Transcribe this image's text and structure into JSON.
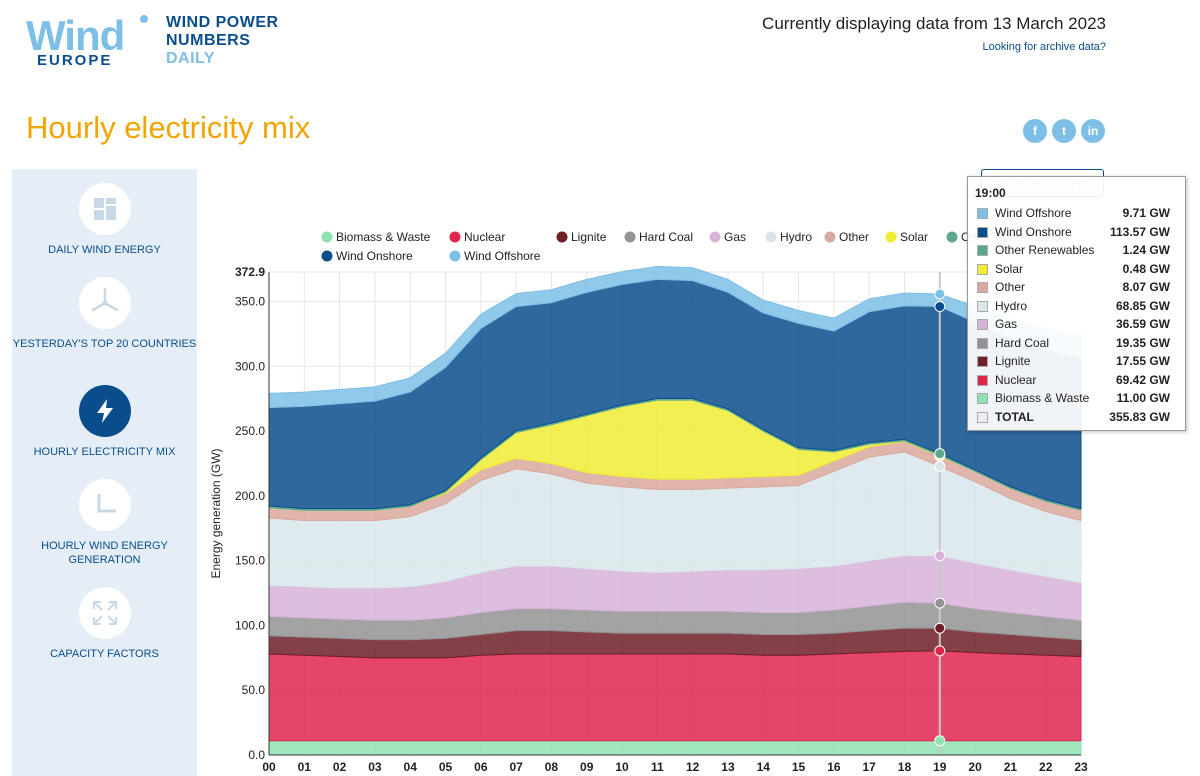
{
  "header": {
    "logo_main": "Wind",
    "logo_sub": "EUROPE",
    "logo_tag1": "WIND POWER",
    "logo_tag2": "NUMBERS",
    "logo_tag3": "DAILY",
    "current_text": "Currently displaying data from 13 March 2023",
    "archive_link": "Looking for archive data?"
  },
  "page_title": "Hourly electricity mix",
  "social": {
    "facebook": "f",
    "twitter": "t",
    "linkedin": "in"
  },
  "country_select": {
    "placeholder": "Select your country"
  },
  "sidebar": {
    "items": [
      {
        "label": "DAILY WIND ENERGY",
        "icon": "dashboard-icon"
      },
      {
        "label": "YESTERDAY'S TOP 20 COUNTRIES",
        "icon": "turbine-icon"
      },
      {
        "label": "HOURLY ELECTRICITY MIX",
        "icon": "lightning-icon",
        "active": true
      },
      {
        "label": "HOURLY WIND ENERGY GENERATION",
        "icon": "clock-icon"
      },
      {
        "label": "CAPACITY FACTORS",
        "icon": "expand-icon"
      }
    ]
  },
  "colors": {
    "accent": "#f0a500",
    "brand": "#0a4d8c",
    "brand_light": "#7dbfe6"
  },
  "tooltip": {
    "time": "19:00",
    "rows": [
      {
        "name": "Wind Offshore",
        "value": "9.71 GW",
        "color": "#7dbfe6"
      },
      {
        "name": "Wind Onshore",
        "value": "113.57 GW",
        "color": "#0a4d8c"
      },
      {
        "name": "Other Renewables",
        "value": "1.24 GW",
        "color": "#5aa890"
      },
      {
        "name": "Solar",
        "value": "0.48 GW",
        "color": "#f0ec34"
      },
      {
        "name": "Other",
        "value": "8.07 GW",
        "color": "#d9a89e"
      },
      {
        "name": "Hydro",
        "value": "68.85 GW",
        "color": "#d8e6ea"
      },
      {
        "name": "Gas",
        "value": "36.59 GW",
        "color": "#d7b3d8"
      },
      {
        "name": "Hard Coal",
        "value": "19.35 GW",
        "color": "#939393"
      },
      {
        "name": "Lignite",
        "value": "17.55 GW",
        "color": "#6e1f27"
      },
      {
        "name": "Nuclear",
        "value": "69.42 GW",
        "color": "#e0254d"
      },
      {
        "name": "Biomass & Waste",
        "value": "11.00 GW",
        "color": "#8ee2b0"
      },
      {
        "name": "TOTAL",
        "value": "355.83 GW",
        "color": "#eeeeee"
      }
    ]
  },
  "chart_data": {
    "type": "area",
    "stacked": true,
    "ylabel": "Energy generation (GW)",
    "ylim": [
      0,
      372.9
    ],
    "yticks": [
      "0.0",
      "50.0",
      "100.0",
      "150.0",
      "200.0",
      "250.0",
      "300.0",
      "350.0",
      "372.9"
    ],
    "x": [
      "00",
      "01",
      "02",
      "03",
      "04",
      "05",
      "06",
      "07",
      "08",
      "09",
      "10",
      "11",
      "12",
      "13",
      "14",
      "15",
      "16",
      "17",
      "18",
      "19",
      "20",
      "21",
      "22",
      "23"
    ],
    "grid": true,
    "legend_position": "top",
    "highlight_index": 19,
    "series": [
      {
        "name": "Biomass & Waste",
        "color": "#8ee2b0",
        "values": [
          11,
          11,
          11,
          11,
          11,
          11,
          11,
          11,
          11,
          11,
          11,
          11,
          11,
          11,
          11,
          11,
          11,
          11,
          11,
          11,
          11,
          11,
          11,
          11
        ]
      },
      {
        "name": "Nuclear",
        "color": "#e0254d",
        "values": [
          67,
          66,
          65,
          64,
          64,
          64,
          66,
          67,
          67,
          67,
          67,
          67,
          67,
          67,
          66,
          66,
          67,
          68,
          69,
          69.4,
          68,
          67,
          66,
          65
        ]
      },
      {
        "name": "Lignite",
        "color": "#6e1f27",
        "values": [
          14,
          14,
          14,
          14,
          14,
          15,
          16,
          18,
          18,
          17,
          16,
          16,
          16,
          16,
          16,
          16,
          16,
          17,
          18,
          17.5,
          16,
          15,
          14,
          13
        ]
      },
      {
        "name": "Hard Coal",
        "color": "#939393",
        "values": [
          15,
          15,
          15,
          15,
          15,
          16,
          17,
          17,
          17,
          17,
          17,
          17,
          17,
          17,
          17,
          17,
          18,
          19,
          20,
          19.4,
          18,
          17,
          16,
          15
        ]
      },
      {
        "name": "Gas",
        "color": "#d7b3d8",
        "values": [
          24,
          24,
          24,
          25,
          26,
          28,
          31,
          33,
          33,
          32,
          31,
          30,
          31,
          32,
          33,
          34,
          34,
          35,
          36,
          36.6,
          35,
          33,
          31,
          29
        ]
      },
      {
        "name": "Hydro",
        "color": "#d8e6ea",
        "values": [
          52,
          51,
          52,
          52,
          54,
          60,
          71,
          75,
          71,
          66,
          65,
          64,
          63,
          63,
          64,
          64,
          73,
          80,
          80,
          68.9,
          63,
          55,
          50,
          48
        ]
      },
      {
        "name": "Other",
        "color": "#d9a89e",
        "values": [
          8,
          8,
          8,
          8,
          8,
          8,
          8,
          8,
          8,
          8,
          8,
          8,
          8,
          8,
          8,
          8,
          8,
          8,
          8,
          8.1,
          8,
          8,
          8,
          8
        ]
      },
      {
        "name": "Solar",
        "color": "#f0ec34",
        "values": [
          0,
          0,
          0,
          0,
          0,
          1,
          8,
          20,
          30,
          44,
          54,
          61,
          61,
          52,
          35,
          20,
          7,
          2,
          0.5,
          0.5,
          0,
          0,
          0,
          0
        ]
      },
      {
        "name": "Other Renewables",
        "color": "#5aa890",
        "values": [
          1.2,
          1.2,
          1.2,
          1.2,
          1.2,
          1.2,
          1.2,
          1.2,
          1.2,
          1.2,
          1.2,
          1.2,
          1.2,
          1.2,
          1.2,
          1.2,
          1.2,
          1.2,
          1.2,
          1.24,
          1.2,
          1.2,
          1.2,
          1.2
        ]
      },
      {
        "name": "Wind Onshore",
        "color": "#0a4d8c",
        "values": [
          76,
          79,
          81,
          83,
          87,
          95,
          100,
          96,
          93,
          94,
          93,
          92,
          91,
          90,
          90,
          96,
          92,
          101,
          103,
          113.6,
          114,
          115,
          116,
          117
        ]
      },
      {
        "name": "Wind Offshore",
        "color": "#7dbfe6",
        "values": [
          11,
          11,
          11,
          11,
          11,
          11,
          11,
          10,
          10,
          10,
          10,
          10,
          10,
          10,
          10,
          10,
          10,
          10,
          10,
          9.7,
          12,
          14,
          16,
          17
        ]
      }
    ],
    "legend": [
      {
        "name": "Biomass & Waste",
        "color": "#8ee2b0"
      },
      {
        "name": "Nuclear",
        "color": "#e0254d"
      },
      {
        "name": "Lignite",
        "color": "#6e1f27"
      },
      {
        "name": "Hard Coal",
        "color": "#939393"
      },
      {
        "name": "Gas",
        "color": "#d7b3d8"
      },
      {
        "name": "Hydro",
        "color": "#d8e6ea"
      },
      {
        "name": "Other",
        "color": "#d9a89e"
      },
      {
        "name": "Solar",
        "color": "#f0ec34"
      },
      {
        "name": "Other Renewables",
        "color": "#5aa890"
      },
      {
        "name": "Wind Onshore",
        "color": "#0a4d8c"
      },
      {
        "name": "Wind Offshore",
        "color": "#7dbfe6"
      }
    ]
  }
}
